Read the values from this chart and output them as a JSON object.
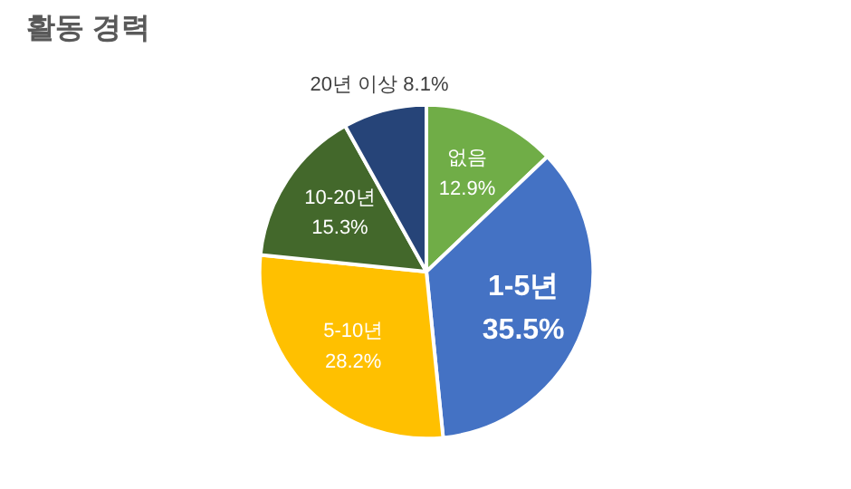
{
  "chart_data": {
    "type": "pie",
    "title": "활동 경력",
    "categories": [
      "없음",
      "1-5년",
      "5-10년",
      "10-20년",
      "20년 이상"
    ],
    "values": [
      12.9,
      35.5,
      28.2,
      15.3,
      8.1
    ],
    "value_labels": [
      "12.9%",
      "35.5%",
      "28.2%",
      "15.3%",
      "8.1%"
    ],
    "colors": [
      "#70ad47",
      "#4472c4",
      "#ffc000",
      "#43682b",
      "#264478"
    ],
    "legend": false
  }
}
